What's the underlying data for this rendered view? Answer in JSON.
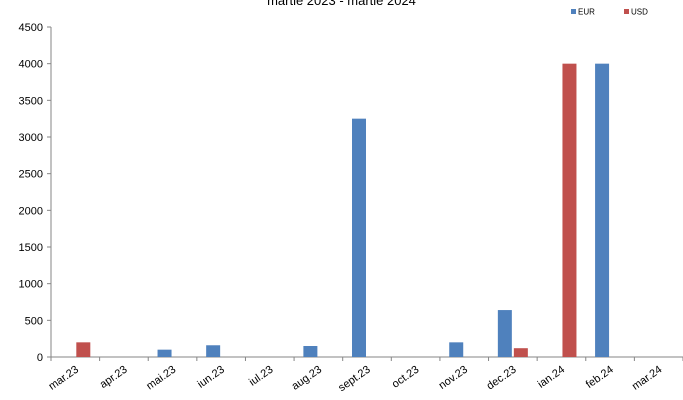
{
  "chart_data": {
    "type": "bar",
    "title": "martie 2023 - martie 2024",
    "categories": [
      "mar.23",
      "apr.23",
      "mai.23",
      "iun.23",
      "iul.23",
      "aug.23",
      "sept.23",
      "oct.23",
      "nov.23",
      "dec.23",
      "ian.24",
      "feb.24",
      "mar.24"
    ],
    "series": [
      {
        "name": "EUR",
        "color": "#4F81BD",
        "values": [
          0,
          0,
          100,
          160,
          0,
          150,
          3250,
          0,
          200,
          640,
          0,
          4000,
          0
        ]
      },
      {
        "name": "USD",
        "color": "#C0504D",
        "values": [
          200,
          0,
          0,
          0,
          0,
          0,
          0,
          0,
          0,
          120,
          4000,
          0,
          0
        ]
      }
    ],
    "ylim": [
      0,
      4500
    ],
    "yticks": [
      0,
      500,
      1000,
      1500,
      2000,
      2500,
      3000,
      3500,
      4000,
      4500
    ],
    "grid": false,
    "legend_position": "top-right"
  }
}
